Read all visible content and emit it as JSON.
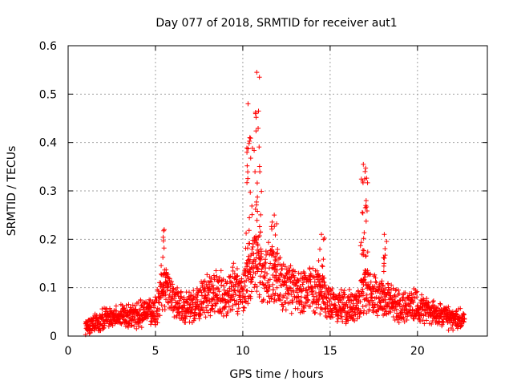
{
  "chart_data": {
    "type": "scatter",
    "title": "Day 077 of 2018, SRMTID for receiver aut1",
    "xlabel": "GPS time / hours",
    "ylabel": "SRMTID / TECUs",
    "xlim": [
      0,
      24
    ],
    "ylim": [
      0,
      0.6
    ],
    "x_ticks": [
      0,
      5,
      10,
      15,
      20
    ],
    "y_ticks": [
      0,
      0.1,
      0.2,
      0.3,
      0.4,
      0.5,
      0.6
    ],
    "x_tick_labels": [
      "0",
      "5",
      "10",
      "15",
      "20"
    ],
    "y_tick_labels": [
      "0",
      "0.1",
      "0.2",
      "0.3",
      "0.4",
      "0.5",
      "0.6"
    ],
    "grid": true,
    "marker": "plus",
    "color": "#ff0000",
    "approximate_trend": {
      "x": [
        1.0,
        1.5,
        2.0,
        2.5,
        3.0,
        3.5,
        4.0,
        4.5,
        5.0,
        5.3,
        5.6,
        6.0,
        6.5,
        7.0,
        7.5,
        8.0,
        8.5,
        9.0,
        9.5,
        10.0,
        10.4,
        10.8,
        11.2,
        11.6,
        12.0,
        12.5,
        13.0,
        13.5,
        14.0,
        14.5,
        15.0,
        15.5,
        16.0,
        16.5,
        17.0,
        17.5,
        18.0,
        18.5,
        19.0,
        19.5,
        20.0,
        20.5,
        21.0,
        21.5,
        22.0,
        22.5,
        22.7
      ],
      "y": [
        0.02,
        0.025,
        0.035,
        0.04,
        0.045,
        0.04,
        0.045,
        0.05,
        0.05,
        0.09,
        0.1,
        0.07,
        0.06,
        0.06,
        0.07,
        0.09,
        0.09,
        0.085,
        0.1,
        0.09,
        0.13,
        0.15,
        0.12,
        0.13,
        0.12,
        0.1,
        0.09,
        0.09,
        0.1,
        0.09,
        0.065,
        0.065,
        0.06,
        0.065,
        0.1,
        0.09,
        0.08,
        0.07,
        0.06,
        0.065,
        0.06,
        0.055,
        0.045,
        0.04,
        0.035,
        0.035,
        0.03
      ]
    },
    "peaks": [
      {
        "x": 5.5,
        "y": 0.22
      },
      {
        "x": 10.3,
        "y": 0.48
      },
      {
        "x": 10.4,
        "y": 0.41
      },
      {
        "x": 10.8,
        "y": 0.545
      },
      {
        "x": 10.9,
        "y": 0.465
      },
      {
        "x": 11.8,
        "y": 0.25
      },
      {
        "x": 14.5,
        "y": 0.21
      },
      {
        "x": 16.9,
        "y": 0.355
      },
      {
        "x": 17.0,
        "y": 0.34
      },
      {
        "x": 18.1,
        "y": 0.21
      }
    ]
  }
}
